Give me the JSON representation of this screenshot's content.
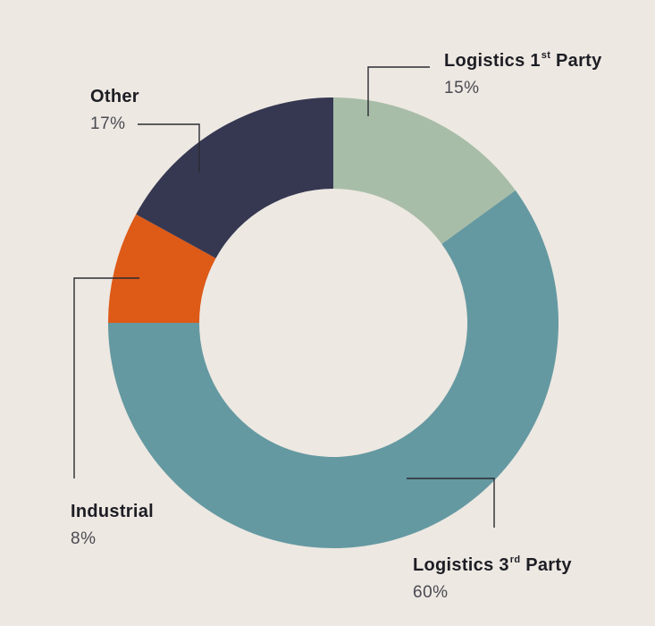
{
  "chart_data": {
    "type": "pie",
    "slices": [
      {
        "label": "Logistics 1st Party",
        "value": 15,
        "pct_text": "15%",
        "color": "#a8bda8"
      },
      {
        "label": "Logistics 3rd Party",
        "value": 60,
        "pct_text": "60%",
        "color": "#6599a1"
      },
      {
        "label": "Industrial",
        "value": 8,
        "pct_text": "8%",
        "color": "#dd5a17"
      },
      {
        "label": "Other",
        "value": 17,
        "pct_text": "17%",
        "color": "#363852"
      }
    ]
  },
  "labels": {
    "logistics_1st": {
      "base": "Logistics 1",
      "sup": "st",
      "tail": " Party",
      "pct": "15%"
    },
    "logistics_3rd": {
      "base": "Logistics 3",
      "sup": "rd",
      "tail": " Party",
      "pct": "60%"
    },
    "industrial": {
      "name": "Industrial",
      "pct": "8%"
    },
    "other": {
      "name": "Other",
      "pct": "17%"
    }
  },
  "colors": {
    "background": "#ede8e2",
    "leader_line": "#2b2b33"
  }
}
